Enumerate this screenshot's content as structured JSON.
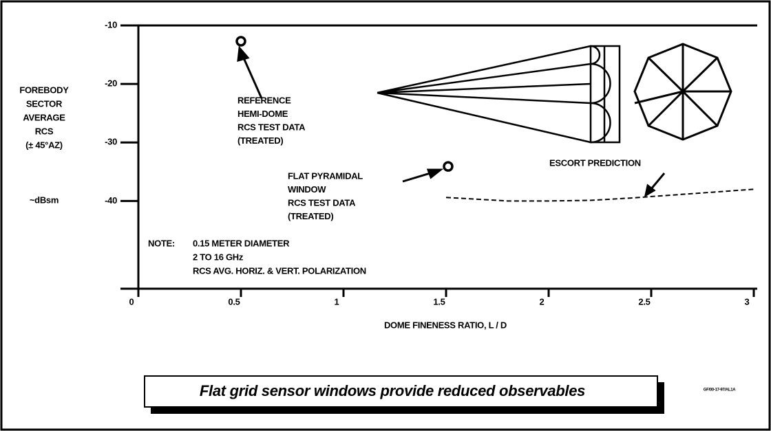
{
  "chart_data": {
    "type": "line",
    "ylabel": [
      "FOREBODY",
      "SECTOR",
      "AVERAGE",
      "RCS",
      "(± 45°AZ)",
      "~dBsm"
    ],
    "xlabel": "DOME FINENESS RATIO, L / D",
    "xlim": [
      0,
      3
    ],
    "xticks": [
      0,
      0.5,
      1,
      1.5,
      2,
      2.5,
      3
    ],
    "ylim": [
      -55,
      -10
    ],
    "yticks": [
      -10,
      -20,
      -30,
      -40
    ],
    "color": "#000000",
    "series": [
      {
        "style": "marker",
        "x": [
          0.5
        ],
        "values": [
          -12.7
        ]
      },
      {
        "style": "marker",
        "x": [
          1.51
        ],
        "values": [
          -34.1
        ]
      },
      {
        "style": "dashed",
        "x": [
          1.5,
          1.7,
          1.8,
          2.0,
          2.2,
          2.4,
          2.6,
          2.8,
          3.0
        ],
        "values": [
          -39.4,
          -39.8,
          -40,
          -40,
          -39.9,
          -39.5,
          -39,
          -38.5,
          -38
        ]
      }
    ],
    "annotations": [
      [
        "REFERENCE",
        "HEMI-DOME",
        "RCS TEST DATA",
        "(TREATED)"
      ],
      [
        "FLAT PYRAMIDAL",
        "WINDOW",
        "RCS TEST DATA",
        "(TREATED)"
      ],
      [
        "ESCORT PREDICTION"
      ]
    ],
    "note": {
      "label": "NOTE:",
      "lines": [
        "0.15 METER DIAMETER",
        "2 TO 16 GHz",
        "RCS AVG. HORIZ. & VERT. POLARIZATION"
      ]
    },
    "banner": "Flat grid sensor windows provide reduced observables",
    "code": "GF/00-17-97/AL1A"
  }
}
